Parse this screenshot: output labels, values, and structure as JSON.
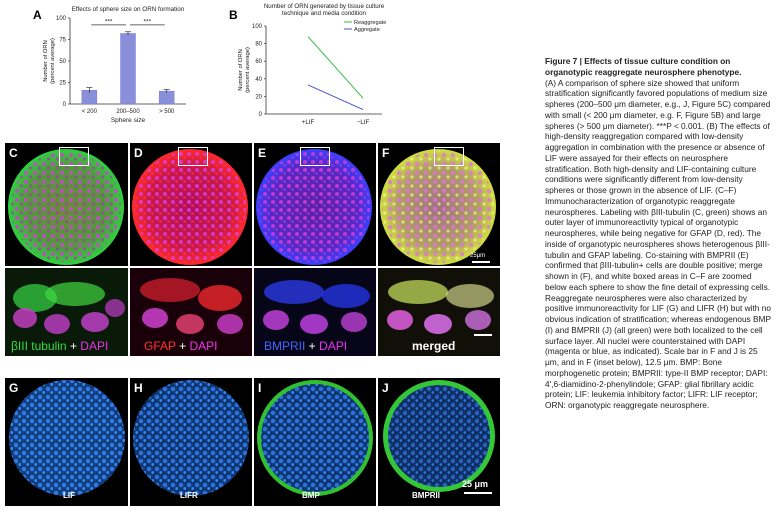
{
  "panel_letters": [
    "A",
    "B",
    "C",
    "D",
    "E",
    "F",
    "G",
    "H",
    "I",
    "J"
  ],
  "chart_data": [
    {
      "type": "bar",
      "title": "Effects of sphere size on ORN formation",
      "ylabel": "Number of ORN (percent average)",
      "xlabel": "Sphere size",
      "categories": [
        "< 200",
        "200–500",
        "> 500"
      ],
      "values": [
        16,
        82,
        15
      ],
      "errors": [
        3,
        2,
        2
      ],
      "ylim": [
        0,
        100
      ],
      "yticks": [
        0,
        25,
        50,
        75,
        100
      ],
      "significance": [
        "***",
        "***"
      ],
      "bar_color": "#8a8fdc"
    },
    {
      "type": "line",
      "title": "Number of ORN generated by tissue culture technique and media condition",
      "ylabel": "Number of ORN (percent average)",
      "categories": [
        "+LIF",
        "−LIF"
      ],
      "series": [
        {
          "name": "Reaggregate",
          "values": [
            88,
            18
          ],
          "color": "#33bb44"
        },
        {
          "name": "Aggregate",
          "values": [
            33,
            5
          ],
          "color": "#4455cc"
        }
      ],
      "ylim": [
        0,
        100
      ],
      "yticks": [
        0,
        20,
        40,
        60,
        80,
        100
      ]
    }
  ],
  "micrographs": {
    "scale_top": "25μm",
    "stain_labels": [
      {
        "parts": [
          "βIII tubulin",
          " + ",
          "DAPI"
        ],
        "colors": [
          "#33dd44",
          "#ffffff",
          "#ee33ee"
        ]
      },
      {
        "parts": [
          "GFAP",
          " + ",
          "DAPI"
        ],
        "colors": [
          "#ff3333",
          "#ffffff",
          "#ee33ee"
        ]
      },
      {
        "parts": [
          "BMPRII",
          " + ",
          "DAPI"
        ],
        "colors": [
          "#4466ff",
          "#ffffff",
          "#ee33ee"
        ]
      },
      {
        "parts": [
          "merged"
        ],
        "colors": [
          "#ffffff"
        ]
      }
    ],
    "bottom_labels": [
      "LIF",
      "LIFR",
      "BMP",
      "BMPRII"
    ],
    "scale_bottom": "25 μm"
  },
  "caption": {
    "title": "Figure 7  |  Effects of tissue culture condition on organotypic reaggregate neurosphere phenotype.",
    "body": "(A) A comparison of sphere size showed that uniform stratification significantly favored populations of medium size spheres (200–500 μm diameter, e.g., J, Figure 5C) compared with small (< 200 μm diameter, e.g. F, Figure 5B) and large spheres (> 500 μm diameter). ***P < 0.001. (B) The effects of high-density reaggregation compared with low-density aggregation in combination with the presence or absence of LIF were assayed for their effects on neurosphere stratification. Both high-density and LIF-containing culture conditions were significantly different from low-density spheres or those grown in the absence of LIF. (C–F) Immunocharacterization of organotypic reaggregate neurospheres. Labeling with βIII-tubulin (C, green) shows an outer layer of immunoreactivity typical of organotypic neurospheres, while being negative for GFAP (D, red). The inside of organotypic neurospheres shows heterogenous βIII-tubulin and GFAP labeling. Co-staining with BMPRII (E) confirmed that βIII-tubulin+ cells are double positive; merge shown in (F), and white boxed areas in C–F are zoomed below each sphere to show the fine detail of expressing cells. Reaggregate neurospheres were also characterized by positive immunoreactivity for LIF (G) and LIFR (H) but with no obvious indication of stratification; whereas endogenous BMP (I) and BMPRII (J) (all green) were both localized to the cell surface layer. All nuclei were counterstained with DAPI (magenta or blue, as indicated). Scale bar in F and J is 25 μm, and in F (inset below), 12.5 μm. BMP: Bone morphogenetic protein; BMPRII: type-II BMP receptor; DAPI: 4′,6-diamidino-2-phenylindole; GFAP: glial fibrillary acidic protein; LIF: leukemia inhibitory factor; LIFR: LIF receptor; ORN: organotypic reaggregate neurosphere."
  },
  "colors": {
    "green": "#33dd44",
    "red": "#ee2233",
    "blue": "#3355ff",
    "magenta": "#dd33dd",
    "dapi_blue": "#2a6fe0"
  }
}
